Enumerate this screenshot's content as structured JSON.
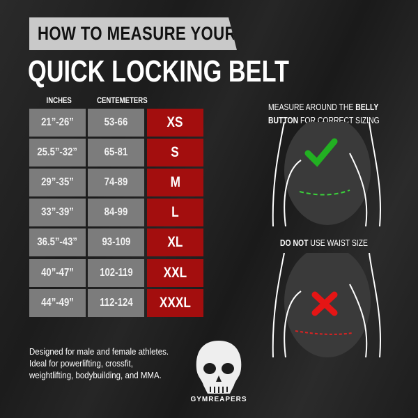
{
  "header": {
    "banner": "HOW TO MEASURE YOUR",
    "title": "QUICK LOCKING BELT"
  },
  "table": {
    "headers": [
      "INCHES",
      "CENTEMETERS"
    ],
    "rows": [
      {
        "inches": "21”-26”",
        "cm": "53-66",
        "size": "XS"
      },
      {
        "inches": "25.5”-32”",
        "cm": "65-81",
        "size": "S"
      },
      {
        "inches": "29”-35”",
        "cm": "74-89",
        "size": "M"
      },
      {
        "inches": "33”-39”",
        "cm": "84-99",
        "size": "L"
      },
      {
        "inches": "36.5”-43”",
        "cm": "93-109",
        "size": "XL"
      },
      {
        "inches": "40”-47”",
        "cm": "102-119",
        "size": "XXL"
      },
      {
        "inches": "44”-49”",
        "cm": "112-124",
        "size": "XXXL"
      }
    ]
  },
  "right": {
    "top_caption": {
      "line1_a": "MEASURE AROUND THE ",
      "line1_b": "BELLY",
      "line2_a": "BUTTON",
      "line2_b": " FOR CORRECT SIZING"
    },
    "bottom_caption": {
      "a": "DO NOT",
      "b": " USE WAIST SIZE"
    },
    "icons": [
      "check-icon",
      "x-icon"
    ]
  },
  "note": "Designed for male and female athletes. Ideal for powerlifting, crossfit, weightlifting, bodybuilding, and MMA.",
  "logo": {
    "text": "GYMREAPERS"
  },
  "colors": {
    "red": "#a30e0e",
    "gray": "#7c7c7c",
    "green": "#22b022"
  }
}
